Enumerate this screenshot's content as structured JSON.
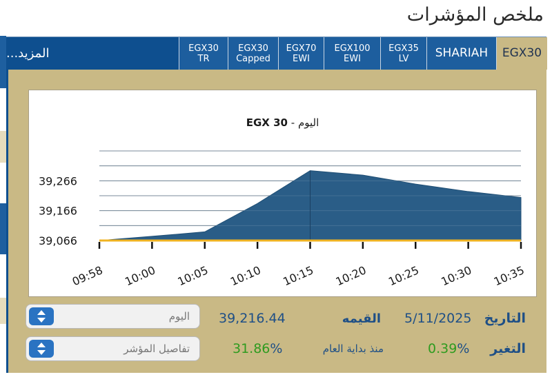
{
  "page": {
    "title": "ملخص المؤشرات"
  },
  "tabs": [
    {
      "label": "EGX30",
      "active": true
    },
    {
      "label": "SHARIAH"
    },
    {
      "label": "EGX35",
      "sub": "LV"
    },
    {
      "label": "EGX100",
      "sub": "EWI"
    },
    {
      "label": "EGX70",
      "sub": "EWI"
    },
    {
      "label": "EGX30",
      "sub": "Capped"
    },
    {
      "label": "EGX30",
      "sub": "TR"
    }
  ],
  "more_label": "المزيد...",
  "chart_data": {
    "type": "area",
    "title_en": "EGX 30",
    "title_ar": "- اليوم",
    "x": [
      "09:58",
      "10:00",
      "10:05",
      "10:10",
      "10:15",
      "10:20",
      "10:25",
      "10:30",
      "10:35"
    ],
    "y": [
      39066,
      39080,
      39095,
      39190,
      39300,
      39285,
      39255,
      39230,
      39210
    ],
    "y_ticks": [
      "39,066",
      "39,166",
      "39,266"
    ],
    "ylim": [
      39066,
      39366
    ],
    "area_color": "#2a5d87",
    "baseline_color": "#f0b321",
    "grid": true
  },
  "info": {
    "date_label": "التاريخ",
    "date_value": "5/11/2025",
    "value_label": "القيمه",
    "value": "39,216.44",
    "change_label": "التغير",
    "change_value": "0.39",
    "ytd_label": "منذ بداية العام",
    "ytd_value": "31.86",
    "percent": "%",
    "period_select": "اليوم",
    "details_select": "تفاصيل المؤشر",
    "positive_color": "#2e9b1f"
  }
}
